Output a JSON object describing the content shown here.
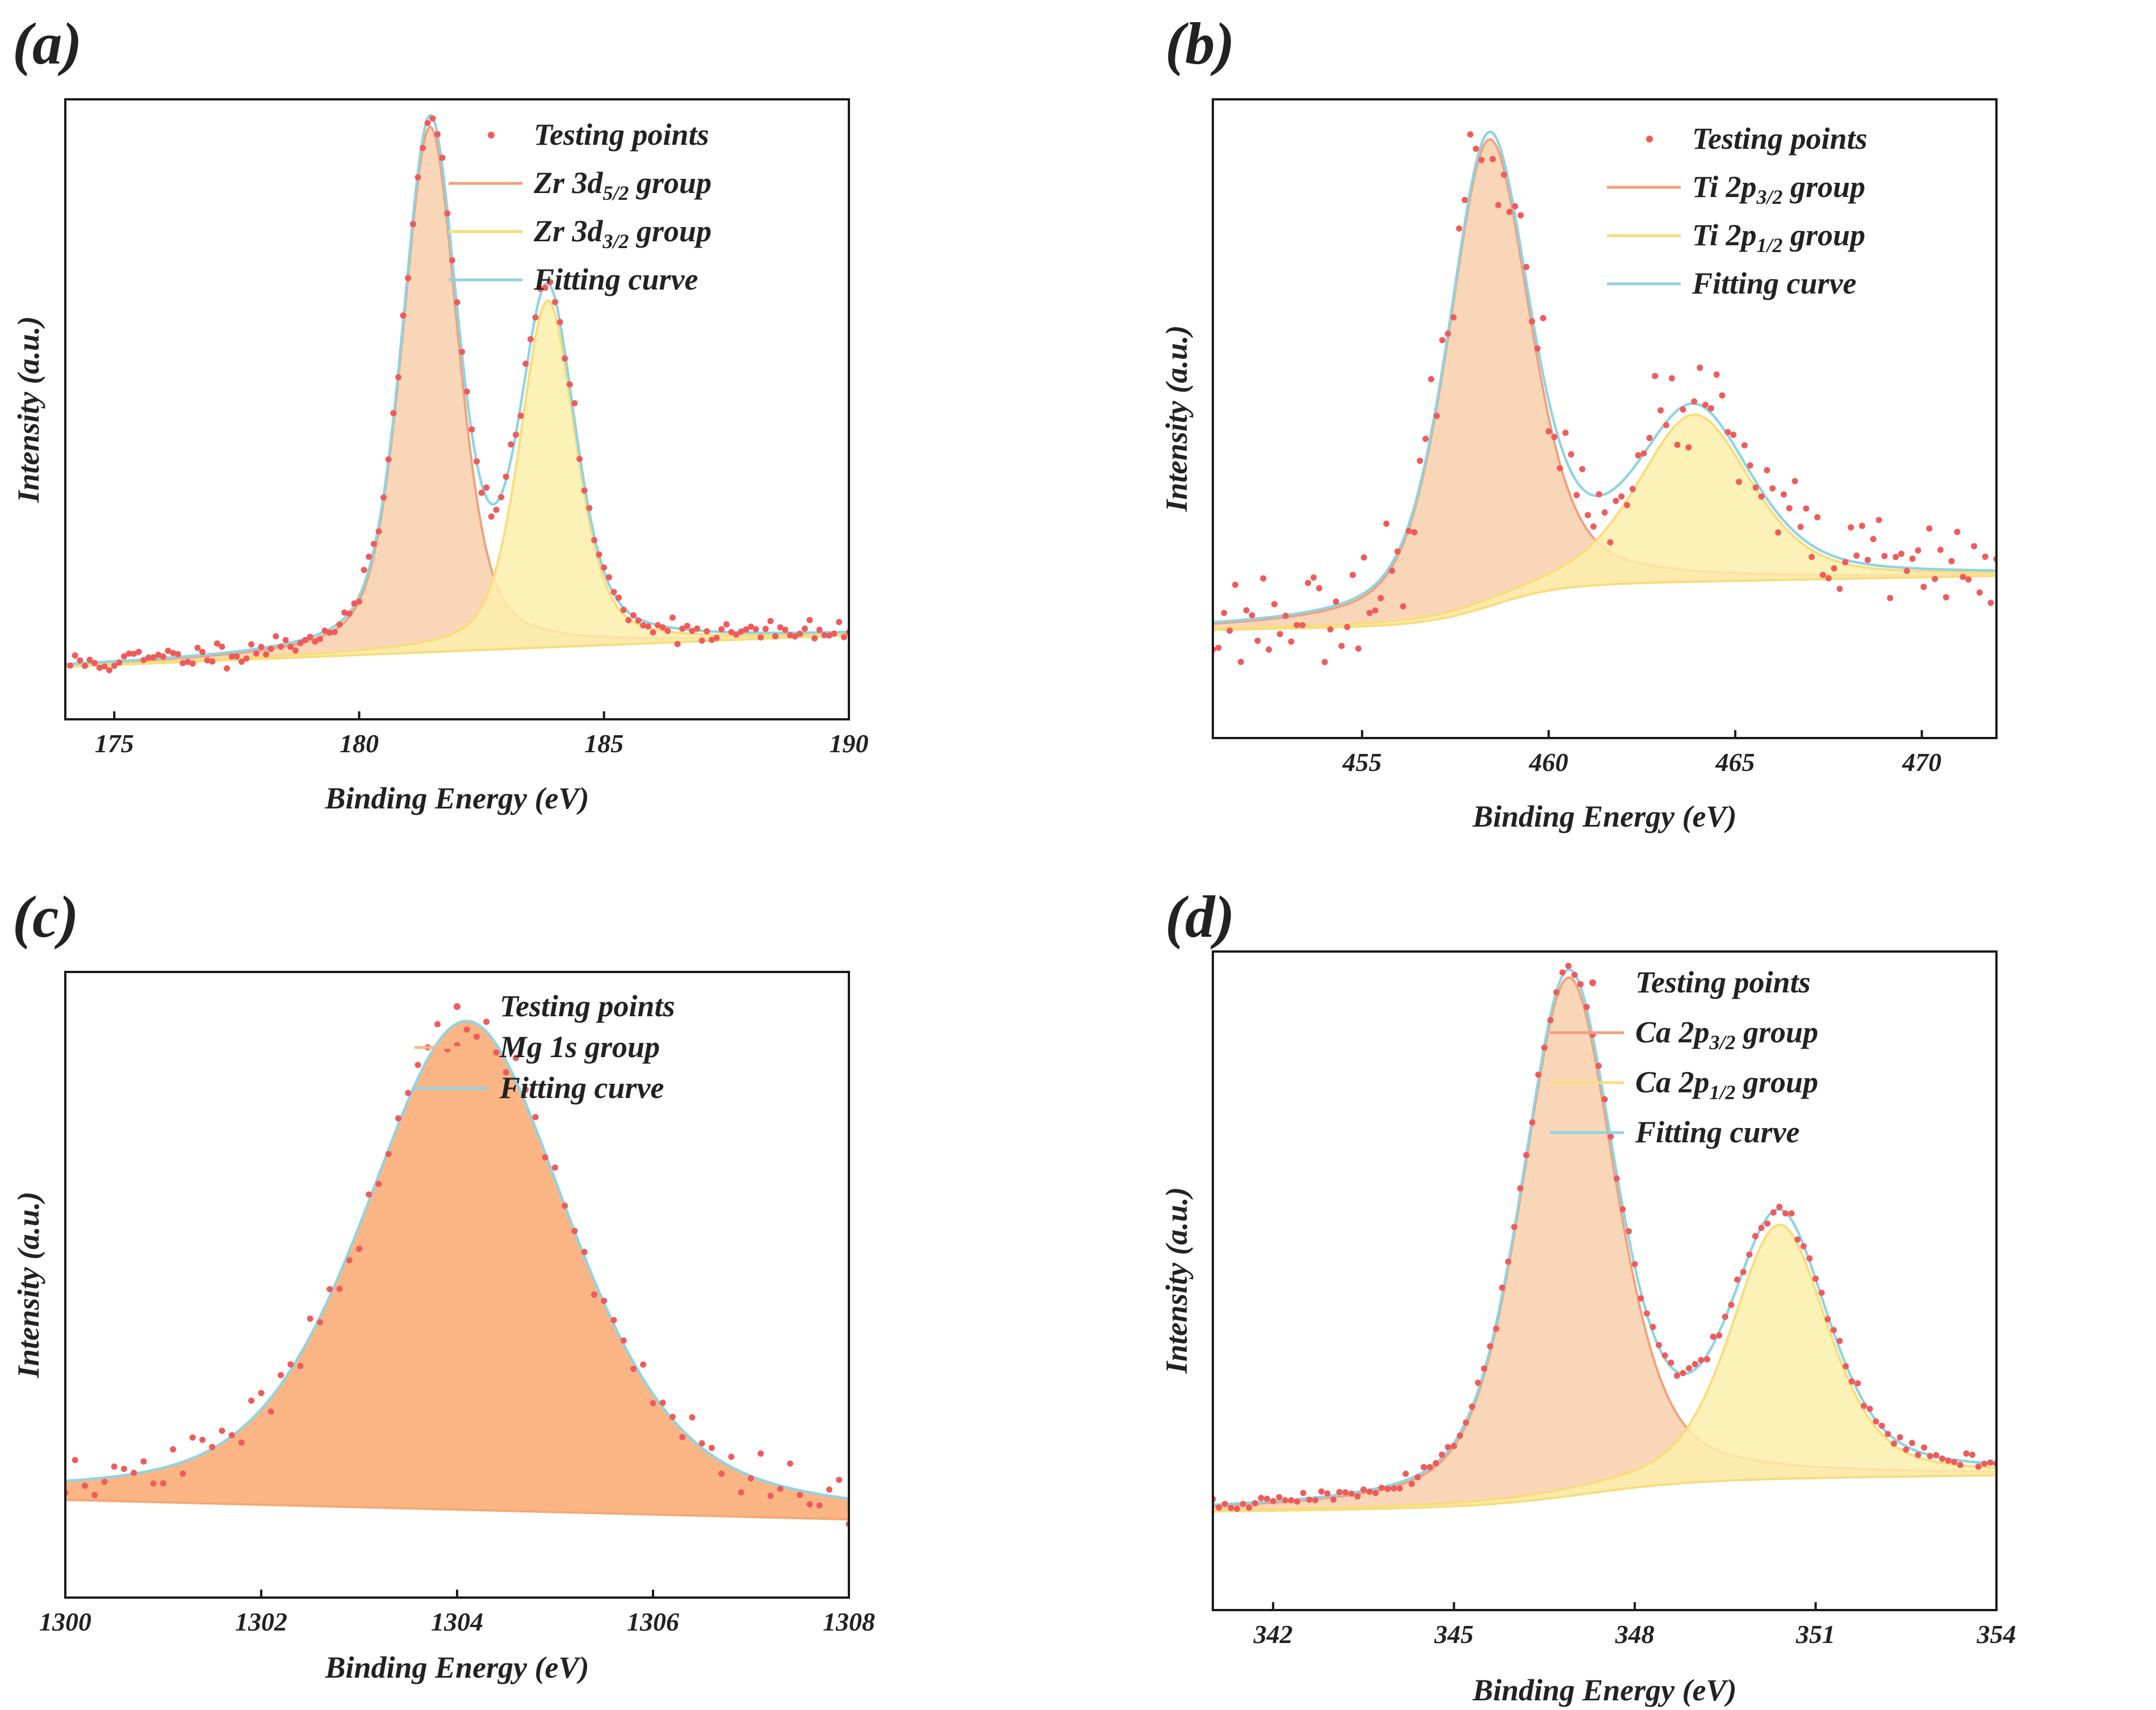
{
  "figure": {
    "colors": {
      "group1_fill": "#f9cfad",
      "group1_line": "#f2a079",
      "group2_fill": "#fbeeaa",
      "group2_line": "#f8dc7c",
      "mg_fill": "#fbb584",
      "mg_line": "#f4a874",
      "fit_line": "#8fd3e2",
      "points": "#ef5b5b",
      "axis": "#1a1a1a"
    }
  },
  "chart_data": [
    {
      "panel": "(a)",
      "type": "line",
      "title": "",
      "xlabel": "Binding Energy (eV)",
      "ylabel": "Intensity (a.u.)",
      "xlim": [
        174,
        190
      ],
      "ylim": [
        -0.1,
        1.08
      ],
      "xticks": [
        175,
        180,
        185,
        190
      ],
      "xtick_labels": [
        "175",
        "180",
        "185",
        "190"
      ],
      "legend": [
        {
          "kind": "points",
          "main": "Testing points",
          "sub": "",
          "tail": ""
        },
        {
          "kind": "group1",
          "main": "Zr 3d",
          "sub": "5/2",
          "tail": " group"
        },
        {
          "kind": "group2",
          "main": "Zr 3d",
          "sub": "3/2",
          "tail": " group"
        },
        {
          "kind": "fit",
          "main": "Fitting curve",
          "sub": "",
          "tail": ""
        }
      ],
      "legend_position": "top-right",
      "background": {
        "type": "linear",
        "start": 0.0,
        "end": 0.06,
        "step_center": 183.4,
        "step_height": 0.0
      },
      "peaks": [
        {
          "name": "Zr 3d5/2 group",
          "center": 181.45,
          "height": 1.0,
          "fwhm": 1.35,
          "shape": "voigt"
        },
        {
          "name": "Zr 3d3/2 group",
          "center": 183.85,
          "height": 0.66,
          "fwhm": 1.35,
          "shape": "voigt"
        }
      ],
      "fill_under": true,
      "fit_follows_components": true,
      "points": {
        "start": 174.1,
        "end": 190,
        "step": 0.1,
        "noise": 0.012,
        "seed": 11
      }
    },
    {
      "panel": "(b)",
      "type": "line",
      "title": "",
      "xlabel": "Binding Energy (eV)",
      "ylabel": "Intensity (a.u.)",
      "xlim": [
        451,
        472
      ],
      "ylim": [
        -0.22,
        1.08
      ],
      "xticks": [
        455,
        460,
        465,
        470
      ],
      "xtick_labels": [
        "455",
        "460",
        "465",
        "470"
      ],
      "legend": [
        {
          "kind": "points",
          "main": "Testing points",
          "sub": "",
          "tail": ""
        },
        {
          "kind": "group1",
          "main": "Ti 2p",
          "sub": "3/2",
          "tail": " group"
        },
        {
          "kind": "group2",
          "main": "Ti 2p",
          "sub": "1/2",
          "tail": " group"
        },
        {
          "kind": "fit",
          "main": "Fitting curve",
          "sub": "",
          "tail": ""
        }
      ],
      "legend_position": "top-right",
      "background": {
        "type": "shirley",
        "start": 0.0,
        "end": 0.11,
        "step_center": 458.5,
        "step_height": 0.08
      },
      "peaks": [
        {
          "name": "Ti 2p3/2 group",
          "center": 458.4,
          "height": 0.95,
          "fwhm": 2.6,
          "shape": "voigt"
        },
        {
          "name": "Ti 2p1/2 group",
          "center": 463.9,
          "height": 0.34,
          "fwhm": 3.6,
          "shape": "voigt"
        }
      ],
      "fill_under": true,
      "fit_follows_components": true,
      "points": {
        "start": 451.0,
        "end": 472,
        "step": 0.15,
        "noise": 0.05,
        "seed": 23
      }
    },
    {
      "panel": "(c)",
      "type": "area",
      "title": "",
      "xlabel": "Binding Energy (eV)",
      "ylabel": "Intensity (a.u.)",
      "xlim": [
        1300,
        1308
      ],
      "ylim": [
        -0.2,
        1.08
      ],
      "xticks": [
        1300,
        1302,
        1304,
        1306,
        1308
      ],
      "xtick_labels": [
        "1300",
        "1302",
        "1304",
        "1306",
        "1308"
      ],
      "legend": [
        {
          "kind": "points",
          "main": "Testing points",
          "sub": "",
          "tail": ""
        },
        {
          "kind": "mg",
          "main": "Mg 1s group",
          "sub": "",
          "tail": ""
        },
        {
          "kind": "fit",
          "main": "Fitting curve",
          "sub": "",
          "tail": ""
        }
      ],
      "legend_position": "top-right",
      "background": {
        "type": "linear",
        "start": 0.0,
        "end": -0.04,
        "step_center": 1304,
        "step_height": 0.0
      },
      "peaks": [
        {
          "name": "Mg 1s group",
          "center": 1304.1,
          "height": 1.0,
          "fwhm": 2.5,
          "shape": "voigt"
        }
      ],
      "fill_under": true,
      "fit_follows_components": true,
      "points": {
        "start": 1300.0,
        "end": 1308,
        "step": 0.1,
        "noise": 0.022,
        "seed": 37
      }
    },
    {
      "panel": "(d)",
      "type": "line",
      "title": "",
      "xlabel": "Binding Energy (eV)",
      "ylabel": "Intensity (a.u.)",
      "xlim": [
        341,
        354
      ],
      "ylim": [
        -0.19,
        1.08
      ],
      "xticks": [
        342,
        345,
        348,
        351,
        354
      ],
      "xtick_labels": [
        "342",
        "345",
        "348",
        "351",
        "354"
      ],
      "legend": [
        {
          "kind": "points",
          "main": "Testing points",
          "sub": "",
          "tail": ""
        },
        {
          "kind": "group1",
          "main": "Ca 2p",
          "sub": "3/2",
          "tail": " group"
        },
        {
          "kind": "group2",
          "main": "Ca 2p",
          "sub": "1/2",
          "tail": " group"
        },
        {
          "kind": "fit",
          "main": "Fitting curve",
          "sub": "",
          "tail": ""
        }
      ],
      "legend_position": "top-right",
      "background": {
        "type": "shirley",
        "start": 0.0,
        "end": 0.07,
        "step_center": 347.2,
        "step_height": 0.05
      },
      "peaks": [
        {
          "name": "Ca 2p3/2 group",
          "center": 346.9,
          "height": 1.0,
          "fwhm": 1.85,
          "shape": "voigt"
        },
        {
          "name": "Ca 2p1/2 group",
          "center": 350.4,
          "height": 0.49,
          "fwhm": 1.9,
          "shape": "voigt"
        }
      ],
      "fill_under": true,
      "fit_follows_components": true,
      "points": {
        "start": 341.0,
        "end": 354,
        "step": 0.1,
        "noise": 0.008,
        "seed": 51
      }
    }
  ]
}
